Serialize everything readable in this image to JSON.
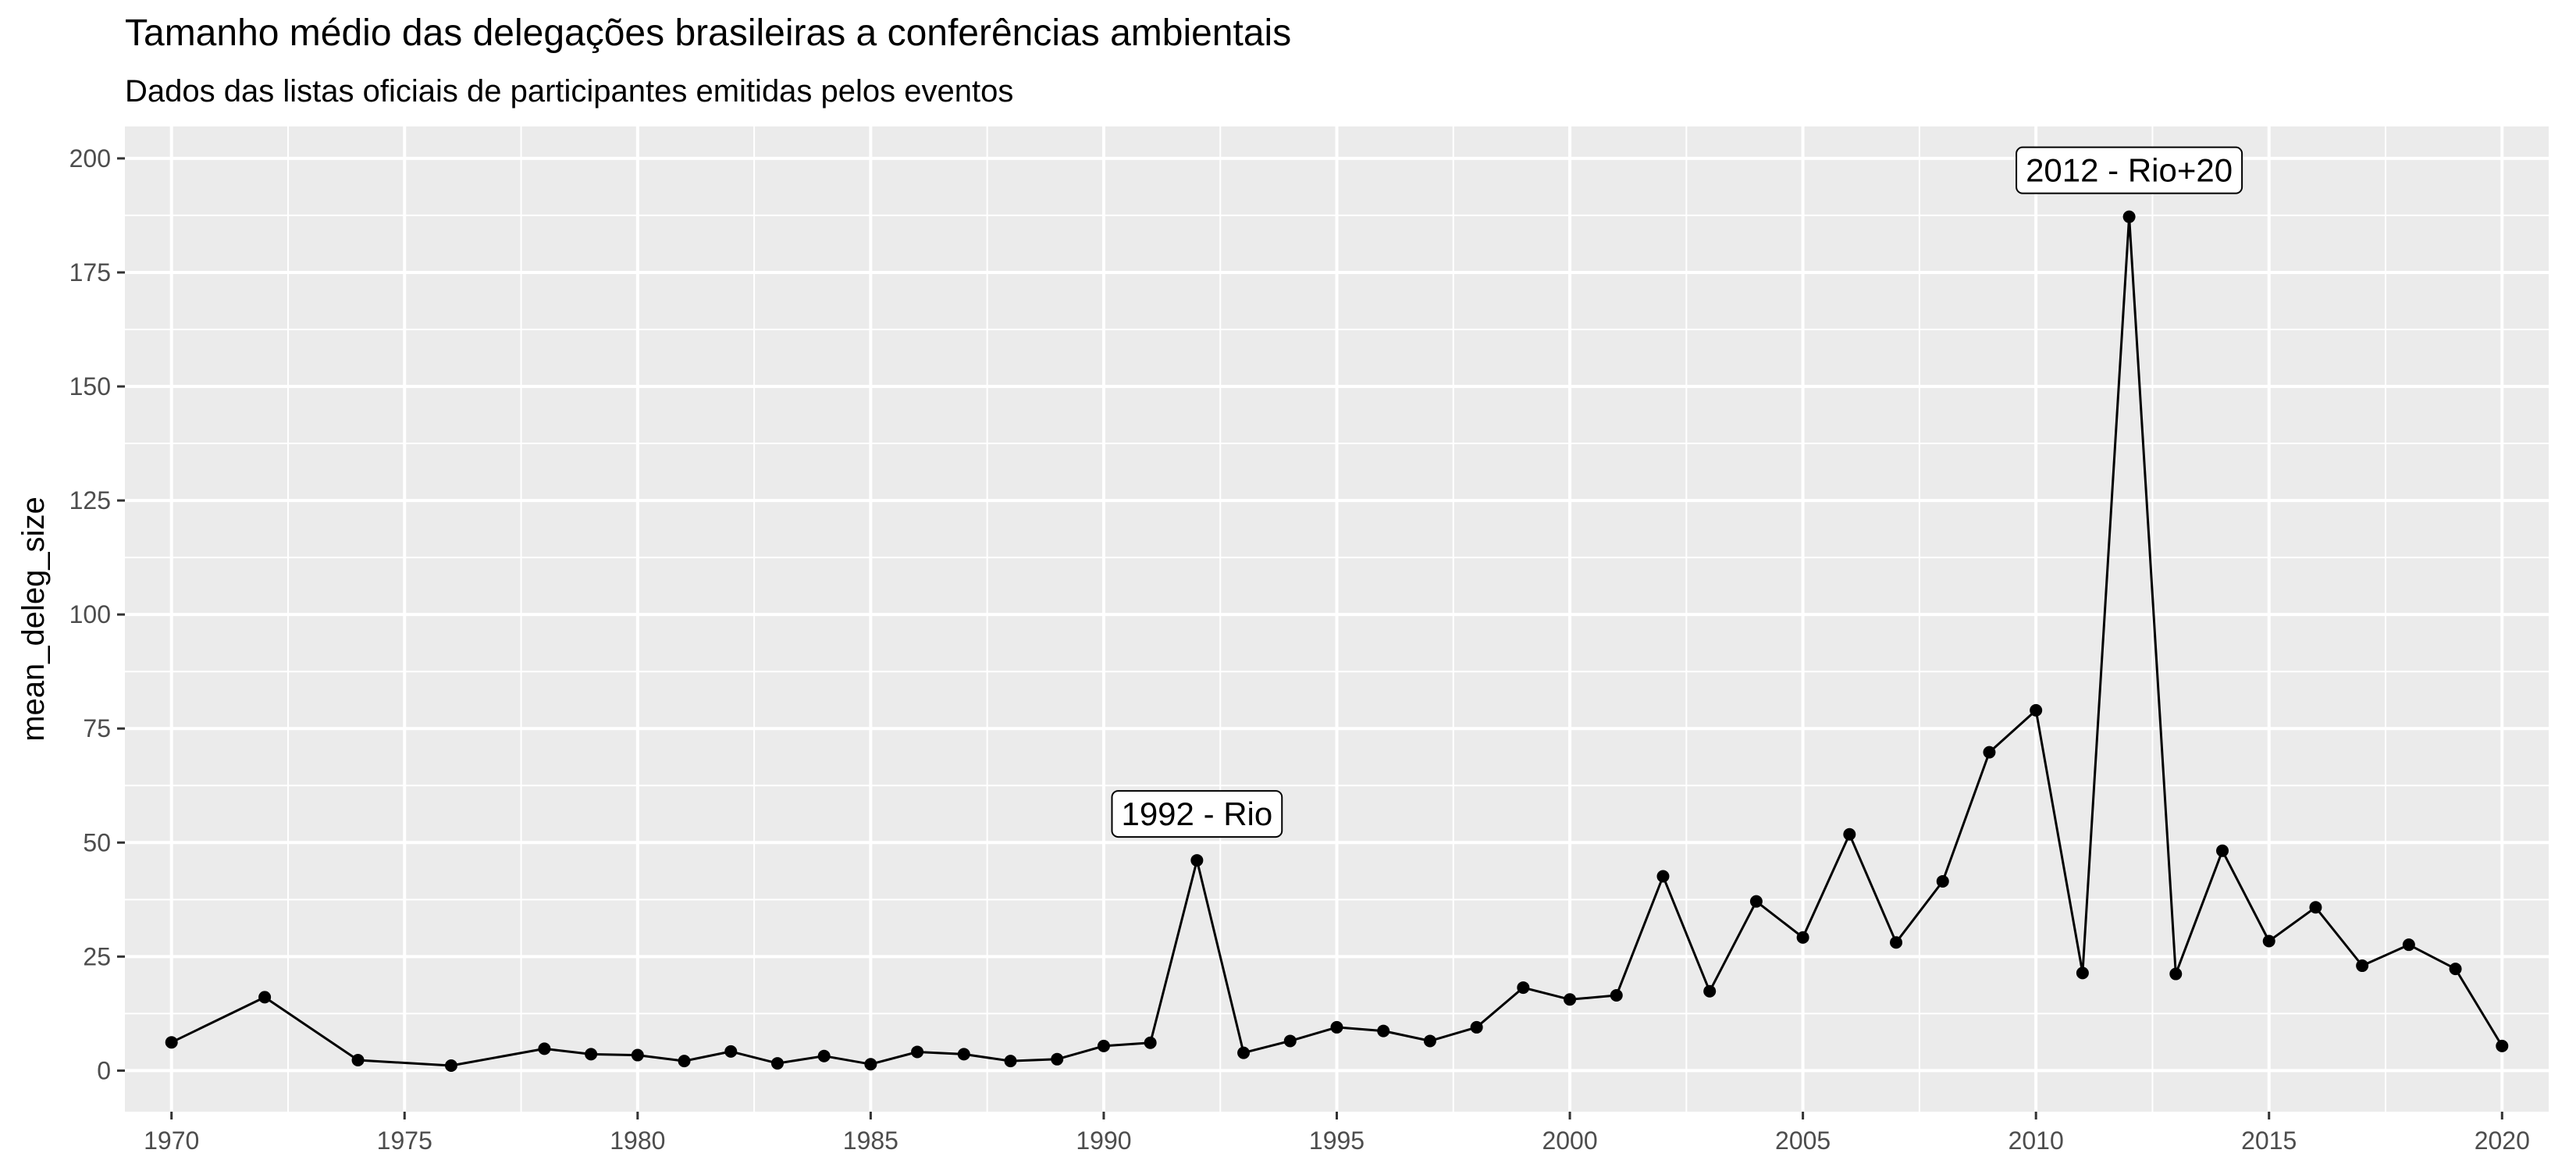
{
  "chart_data": {
    "type": "line",
    "title": "Tamanho médio das delegações brasileiras a conferências ambientais",
    "subtitle": "Dados das listas oficiais de participantes emitidas pelos eventos",
    "xlabel": "",
    "ylabel": "mean_deleg_size",
    "xlim": [
      1969,
      2021
    ],
    "ylim": [
      -9,
      207
    ],
    "x_ticks": [
      1970,
      1975,
      1980,
      1985,
      1990,
      1995,
      2000,
      2005,
      2010,
      2015,
      2020
    ],
    "x_tick_labels": [
      "1970",
      "1975",
      "1980",
      "1985",
      "1990",
      "1995",
      "2000",
      "2005",
      "2010",
      "2015",
      "2020"
    ],
    "y_ticks": [
      0,
      25,
      50,
      75,
      100,
      125,
      150,
      175,
      200
    ],
    "y_tick_labels": [
      "0",
      "25",
      "50",
      "75",
      "100",
      "125",
      "150",
      "175",
      "200"
    ],
    "grid": true,
    "colors": {
      "panel": "#ebebeb",
      "grid": "#ffffff",
      "line": "#000000",
      "point": "#000000"
    },
    "series": [
      {
        "x": [
          1970,
          1972,
          1974,
          1976,
          1978,
          1979,
          1980,
          1981,
          1982,
          1983,
          1984,
          1985,
          1986,
          1987,
          1988,
          1989,
          1990,
          1991,
          1992,
          1993,
          1994,
          1995,
          1996,
          1997,
          1998,
          1999,
          2000,
          2001,
          2002,
          2003,
          2004,
          2005,
          2006,
          2007,
          2008,
          2009,
          2010,
          2011,
          2012,
          2013,
          2014,
          2015,
          2016,
          2017,
          2018,
          2019,
          2020
        ],
        "y": [
          6.2,
          16.1,
          2.3,
          1.1,
          4.8,
          3.6,
          3.4,
          2.1,
          4.2,
          1.6,
          3.2,
          1.4,
          4.1,
          3.6,
          2.1,
          2.5,
          5.4,
          6.1,
          46.1,
          3.9,
          6.5,
          9.5,
          8.7,
          6.5,
          9.5,
          18.2,
          15.6,
          16.5,
          42.6,
          17.4,
          37.1,
          29.2,
          51.8,
          28.1,
          41.5,
          69.8,
          79.0,
          21.4,
          187.2,
          21.2,
          48.2,
          28.4,
          35.8,
          23.0,
          27.6,
          22.3,
          5.4
        ]
      }
    ],
    "annotations": [
      {
        "x": 1992,
        "y": 46.1,
        "text": "1992 - Rio"
      },
      {
        "x": 2012,
        "y": 187.2,
        "text": "2012 - Rio+20"
      }
    ]
  }
}
